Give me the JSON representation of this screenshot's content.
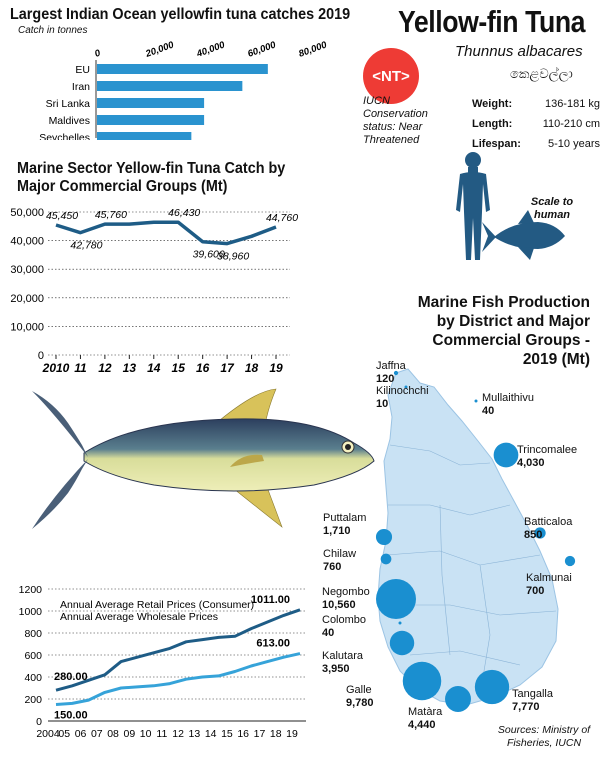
{
  "header": {
    "main_title": "Yellow-fin Tuna",
    "scientific_name": "Thunnus albacares",
    "local_name": "කෙළවල්ලා",
    "status_badge": "<NT>",
    "iucn_status": "IUCN Conservation status:  Near Threatened",
    "facts": [
      {
        "key": "Weight:",
        "value": "136-181 kg"
      },
      {
        "key": "Length:",
        "value": "110-210 cm"
      },
      {
        "key": "Lifespan:",
        "value": "5-10 years"
      }
    ],
    "scale_label": "Scale to human"
  },
  "colors": {
    "bar": "#2a93cf",
    "line_dark": "#1e5c86",
    "line_light": "#36a3d9",
    "bubble": "#1a8fd0",
    "island": "#c9e2f4",
    "human": "#235a83",
    "badge": "#ee3b35"
  },
  "chart_data": [
    {
      "type": "bar",
      "orientation": "horizontal",
      "title": "Largest Indian Ocean yellowfin tuna catches 2019",
      "subtitle": "Catch in tonnes",
      "categories": [
        "EU",
        "Iran",
        "Sri Lanka",
        "Maldives",
        "Seychelles"
      ],
      "values": [
        67000,
        57000,
        42000,
        42000,
        37000
      ],
      "xlim": [
        0,
        80000
      ],
      "xticks": [
        "0",
        "20,000",
        "40,000",
        "60,000",
        "80,000"
      ]
    },
    {
      "type": "line",
      "title": "Marine Sector Yellow-fin Tuna Catch by Major Commercial Groups (Mt)",
      "x": [
        "2010",
        "11",
        "12",
        "13",
        "14",
        "15",
        "16",
        "17",
        "18",
        "19"
      ],
      "values": [
        45450,
        42780,
        45760,
        45760,
        46430,
        46430,
        39600,
        38960,
        41500,
        44760
      ],
      "data_labels": [
        {
          "i": 0,
          "text": "45,450"
        },
        {
          "i": 1,
          "text": "42,780"
        },
        {
          "i": 2,
          "text": "45,760"
        },
        {
          "i": 5,
          "text": "46,430"
        },
        {
          "i": 6,
          "text": "39,600"
        },
        {
          "i": 7,
          "text": "38,960"
        },
        {
          "i": 9,
          "text": "44,760"
        }
      ],
      "ylim": [
        0,
        50000
      ],
      "yticks": [
        "0",
        "10,000",
        "20,000",
        "30,000",
        "40,000",
        "50,000"
      ],
      "grid": true
    },
    {
      "type": "line",
      "x": [
        "2004",
        "05",
        "06",
        "07",
        "08",
        "09",
        "10",
        "11",
        "12",
        "13",
        "14",
        "15",
        "16",
        "17",
        "18",
        "19"
      ],
      "series": [
        {
          "name": "Annual Average Retail Prices (Consumer)",
          "values": [
            280,
            320,
            370,
            420,
            540,
            580,
            620,
            660,
            720,
            740,
            760,
            770,
            840,
            900,
            960,
            1011
          ],
          "end_label": "1011.00",
          "start_label": "280.00"
        },
        {
          "name": "Annual Average Wholesale Prices",
          "values": [
            150,
            160,
            190,
            260,
            300,
            310,
            320,
            340,
            380,
            400,
            410,
            450,
            500,
            540,
            580,
            613
          ],
          "end_label": "613.00",
          "start_label": "150.00"
        }
      ],
      "ylim": [
        0,
        1200
      ],
      "yticks": [
        "0",
        "200",
        "400",
        "600",
        "800",
        "1000",
        "1200"
      ]
    },
    {
      "type": "bubble_map",
      "title": "Marine Fish Production by District and Major Commercial Groups - 2019 (Mt)",
      "districts": [
        {
          "name": "Jaffna",
          "value": "120",
          "n": 120
        },
        {
          "name": "Kilinochchi",
          "value": "10",
          "n": 10
        },
        {
          "name": "Mullaithivu",
          "value": "40",
          "n": 40
        },
        {
          "name": "Trincomalee",
          "value": "4,030",
          "n": 4030
        },
        {
          "name": "Puttalam",
          "value": "1,710",
          "n": 1710
        },
        {
          "name": "Batticaloa",
          "value": "850",
          "n": 850
        },
        {
          "name": "Chilaw",
          "value": "760",
          "n": 760
        },
        {
          "name": "Kalmunai",
          "value": "700",
          "n": 700
        },
        {
          "name": "Negombo",
          "value": "10,560",
          "n": 10560
        },
        {
          "name": "Colombo",
          "value": "40",
          "n": 40
        },
        {
          "name": "Kalutara",
          "value": "3,950",
          "n": 3950
        },
        {
          "name": "Galle",
          "value": "9,780",
          "n": 9780
        },
        {
          "name": "Matàra",
          "value": "4,440",
          "n": 4440
        },
        {
          "name": "Tangalla",
          "value": "7,770",
          "n": 7770
        }
      ]
    }
  ],
  "source": "Sources: Ministry of Fisheries, IUCN"
}
